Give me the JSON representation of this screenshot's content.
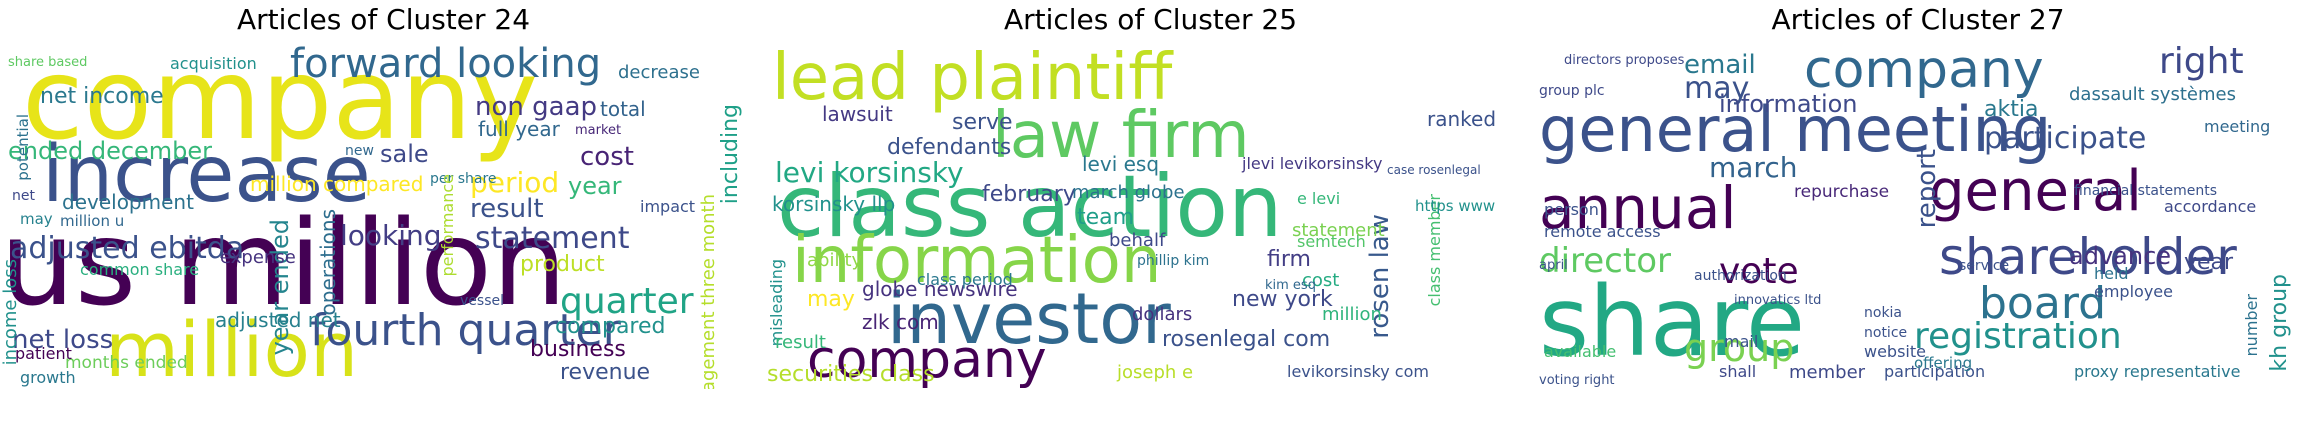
{
  "clusters": [
    {
      "title": "Articles of Cluster 24",
      "words": [
        "company",
        "us million",
        "increase",
        "million",
        "forward looking",
        "net income",
        "adjusted ebitda",
        "ended december",
        "non gaap",
        "fourth quarter",
        "statement",
        "looking",
        "development",
        "period",
        "result",
        "cost",
        "sale",
        "per share",
        "million compared",
        "quarter",
        "compared",
        "business",
        "revenue",
        "product",
        "common share",
        "net loss",
        "year ended",
        "adjusted net",
        "management three month",
        "including",
        "operations",
        "year",
        "full year",
        "total",
        "decrease",
        "acquisition",
        "share based",
        "expense",
        "income loss",
        "months ended",
        "patient",
        "growth",
        "million u",
        "may",
        "net",
        "potential",
        "impact",
        "market",
        "new",
        "performance",
        "vessel",
        "statement"
      ]
    },
    {
      "title": "Articles of Cluster 25",
      "words": [
        "lead plaintiff",
        "class action",
        "law firm",
        "information",
        "investor",
        "company",
        "levi korsinsky",
        "serve",
        "lawsuit",
        "defendants",
        "levi esq",
        "ranked",
        "korsinsky llp",
        "february",
        "march globe",
        "team",
        "behalf",
        "globe newswire",
        "firm",
        "rosen law",
        "new york",
        "class period",
        "may",
        "zlk com",
        "rosenlegal com",
        "dollars",
        "securities class",
        "misleading",
        "result",
        "ability",
        "cost",
        "statement",
        "e levi",
        "semtech",
        "million",
        "class member",
        "joseph e",
        "levikorsinsky com",
        "kim esq",
        "jlevi levikorsinsky",
        "https www",
        "case rosenlegal",
        "phillip kim"
      ]
    },
    {
      "title": "Articles of Cluster 27",
      "words": [
        "company",
        "general meeting",
        "annual",
        "general",
        "share",
        "shareholder",
        "board",
        "director",
        "right",
        "email",
        "may",
        "information",
        "dassault systèmes",
        "aktia",
        "participate",
        "march",
        "report",
        "group",
        "registration",
        "vote",
        "advance",
        "year",
        "repurchase",
        "remote access",
        "employee",
        "member",
        "proxy representative",
        "website",
        "shall",
        "available",
        "participation",
        "meeting",
        "held",
        "offering",
        "person",
        "financial statements",
        "accordance",
        "innovatics ltd",
        "group plc",
        "notice",
        "kh group",
        "number",
        "mail",
        "service",
        "nokia",
        "authorization",
        "voting right",
        "april",
        "directors proposes"
      ]
    }
  ],
  "colors": {
    "dark_purple": "#440154",
    "indigo": "#3b528b",
    "teal": "#21918c",
    "green": "#5ec962",
    "yellow": "#fde725"
  }
}
